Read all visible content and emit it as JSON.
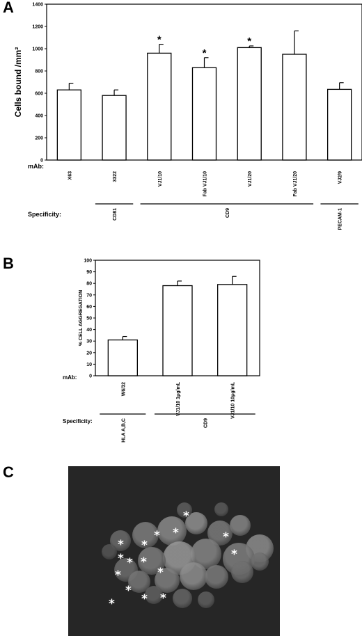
{
  "panels": {
    "a_letter": "A",
    "b_letter": "B",
    "c_letter": "C"
  },
  "chart_data": [
    {
      "type": "bar",
      "ylabel": "Cells bound /mm²",
      "ylim": [
        0,
        1400
      ],
      "yticks": [
        0,
        200,
        400,
        600,
        800,
        1000,
        1200,
        1400
      ],
      "row_label_mab": "mAb:",
      "row_label_specificity": "Specificity:",
      "categories": [
        "X63",
        "3322",
        "VJ1/10",
        "Fab VJ1/10",
        "VJ1/20",
        "Fab VJ1/20",
        "VJ2/9"
      ],
      "values": [
        630,
        580,
        960,
        830,
        1010,
        950,
        635
      ],
      "errors": [
        60,
        50,
        80,
        90,
        15,
        210,
        60
      ],
      "significant": [
        false,
        false,
        true,
        true,
        true,
        false,
        false
      ],
      "significance_marker": "*",
      "specificity_groups": [
        {
          "label": "CD81",
          "from": 1,
          "to": 1
        },
        {
          "label": "CD9",
          "from": 2,
          "to": 5
        },
        {
          "label": "PECAM-1",
          "from": 6,
          "to": 6
        }
      ],
      "grid": false
    },
    {
      "type": "bar",
      "ylabel": "% CELL AGGREGATION",
      "ylim": [
        0,
        100
      ],
      "yticks": [
        0,
        10,
        20,
        30,
        40,
        50,
        60,
        70,
        80,
        90,
        100
      ],
      "row_label_mab": "mAb:",
      "row_label_specificity": "Specificity:",
      "categories": [
        "W6/32",
        "VJ1/10 1μg/mL",
        "VJ1/10 10μg/mL"
      ],
      "values": [
        31,
        78,
        79
      ],
      "errors": [
        3,
        4,
        7
      ],
      "specificity_groups": [
        {
          "label": "HLA A,B,C",
          "from": 0,
          "to": 0
        },
        {
          "label": "CD9",
          "from": 1,
          "to": 2
        }
      ],
      "grid": false
    }
  ],
  "micrograph": {
    "marker": "*",
    "marker_count": 16
  }
}
